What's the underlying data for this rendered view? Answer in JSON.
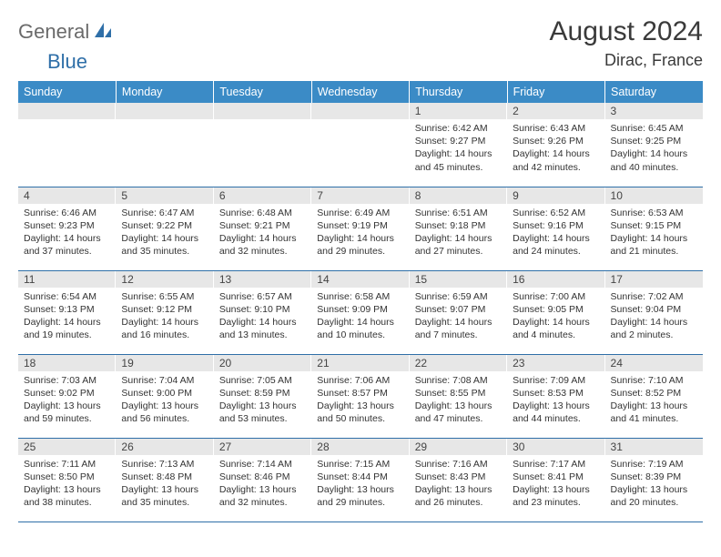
{
  "logo": {
    "part1": "General",
    "part2": "Blue"
  },
  "title": "August 2024",
  "location": "Dirac, France",
  "colors": {
    "header_bg": "#3b8bc6",
    "header_text": "#ffffff",
    "daynum_bg": "#e7e7e7",
    "border": "#2f6fa8",
    "logo_gray": "#6a6a6a",
    "logo_blue": "#2f6fa8"
  },
  "day_headers": [
    "Sunday",
    "Monday",
    "Tuesday",
    "Wednesday",
    "Thursday",
    "Friday",
    "Saturday"
  ],
  "weeks": [
    [
      null,
      null,
      null,
      null,
      {
        "n": "1",
        "sunrise": "6:42 AM",
        "sunset": "9:27 PM",
        "daylight": "14 hours and 45 minutes."
      },
      {
        "n": "2",
        "sunrise": "6:43 AM",
        "sunset": "9:26 PM",
        "daylight": "14 hours and 42 minutes."
      },
      {
        "n": "3",
        "sunrise": "6:45 AM",
        "sunset": "9:25 PM",
        "daylight": "14 hours and 40 minutes."
      }
    ],
    [
      {
        "n": "4",
        "sunrise": "6:46 AM",
        "sunset": "9:23 PM",
        "daylight": "14 hours and 37 minutes."
      },
      {
        "n": "5",
        "sunrise": "6:47 AM",
        "sunset": "9:22 PM",
        "daylight": "14 hours and 35 minutes."
      },
      {
        "n": "6",
        "sunrise": "6:48 AM",
        "sunset": "9:21 PM",
        "daylight": "14 hours and 32 minutes."
      },
      {
        "n": "7",
        "sunrise": "6:49 AM",
        "sunset": "9:19 PM",
        "daylight": "14 hours and 29 minutes."
      },
      {
        "n": "8",
        "sunrise": "6:51 AM",
        "sunset": "9:18 PM",
        "daylight": "14 hours and 27 minutes."
      },
      {
        "n": "9",
        "sunrise": "6:52 AM",
        "sunset": "9:16 PM",
        "daylight": "14 hours and 24 minutes."
      },
      {
        "n": "10",
        "sunrise": "6:53 AM",
        "sunset": "9:15 PM",
        "daylight": "14 hours and 21 minutes."
      }
    ],
    [
      {
        "n": "11",
        "sunrise": "6:54 AM",
        "sunset": "9:13 PM",
        "daylight": "14 hours and 19 minutes."
      },
      {
        "n": "12",
        "sunrise": "6:55 AM",
        "sunset": "9:12 PM",
        "daylight": "14 hours and 16 minutes."
      },
      {
        "n": "13",
        "sunrise": "6:57 AM",
        "sunset": "9:10 PM",
        "daylight": "14 hours and 13 minutes."
      },
      {
        "n": "14",
        "sunrise": "6:58 AM",
        "sunset": "9:09 PM",
        "daylight": "14 hours and 10 minutes."
      },
      {
        "n": "15",
        "sunrise": "6:59 AM",
        "sunset": "9:07 PM",
        "daylight": "14 hours and 7 minutes."
      },
      {
        "n": "16",
        "sunrise": "7:00 AM",
        "sunset": "9:05 PM",
        "daylight": "14 hours and 4 minutes."
      },
      {
        "n": "17",
        "sunrise": "7:02 AM",
        "sunset": "9:04 PM",
        "daylight": "14 hours and 2 minutes."
      }
    ],
    [
      {
        "n": "18",
        "sunrise": "7:03 AM",
        "sunset": "9:02 PM",
        "daylight": "13 hours and 59 minutes."
      },
      {
        "n": "19",
        "sunrise": "7:04 AM",
        "sunset": "9:00 PM",
        "daylight": "13 hours and 56 minutes."
      },
      {
        "n": "20",
        "sunrise": "7:05 AM",
        "sunset": "8:59 PM",
        "daylight": "13 hours and 53 minutes."
      },
      {
        "n": "21",
        "sunrise": "7:06 AM",
        "sunset": "8:57 PM",
        "daylight": "13 hours and 50 minutes."
      },
      {
        "n": "22",
        "sunrise": "7:08 AM",
        "sunset": "8:55 PM",
        "daylight": "13 hours and 47 minutes."
      },
      {
        "n": "23",
        "sunrise": "7:09 AM",
        "sunset": "8:53 PM",
        "daylight": "13 hours and 44 minutes."
      },
      {
        "n": "24",
        "sunrise": "7:10 AM",
        "sunset": "8:52 PM",
        "daylight": "13 hours and 41 minutes."
      }
    ],
    [
      {
        "n": "25",
        "sunrise": "7:11 AM",
        "sunset": "8:50 PM",
        "daylight": "13 hours and 38 minutes."
      },
      {
        "n": "26",
        "sunrise": "7:13 AM",
        "sunset": "8:48 PM",
        "daylight": "13 hours and 35 minutes."
      },
      {
        "n": "27",
        "sunrise": "7:14 AM",
        "sunset": "8:46 PM",
        "daylight": "13 hours and 32 minutes."
      },
      {
        "n": "28",
        "sunrise": "7:15 AM",
        "sunset": "8:44 PM",
        "daylight": "13 hours and 29 minutes."
      },
      {
        "n": "29",
        "sunrise": "7:16 AM",
        "sunset": "8:43 PM",
        "daylight": "13 hours and 26 minutes."
      },
      {
        "n": "30",
        "sunrise": "7:17 AM",
        "sunset": "8:41 PM",
        "daylight": "13 hours and 23 minutes."
      },
      {
        "n": "31",
        "sunrise": "7:19 AM",
        "sunset": "8:39 PM",
        "daylight": "13 hours and 20 minutes."
      }
    ]
  ],
  "labels": {
    "sunrise": "Sunrise:",
    "sunset": "Sunset:",
    "daylight": "Daylight:"
  }
}
